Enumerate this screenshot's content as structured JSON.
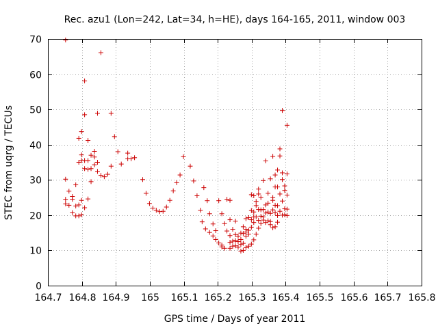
{
  "chart_data": {
    "type": "scatter",
    "title": "Rec. azu1 (Lon=242, Lat=34, h=HE), days 164-165, 2011, window 003",
    "xlabel": "GPS time / Days of year 2011",
    "ylabel": "STEC from uqrg / TECUs",
    "xlim": [
      164.7,
      165.8
    ],
    "ylim": [
      0,
      70
    ],
    "xticks": [
      "164.7",
      "164.8",
      "164.9",
      "165",
      "165.1",
      "165.2",
      "165.3",
      "165.4",
      "165.5",
      "165.6",
      "165.7",
      "165.8"
    ],
    "yticks": [
      "0",
      "10",
      "20",
      "30",
      "40",
      "50",
      "60",
      "70"
    ],
    "grid": true,
    "marker": "+",
    "color": "#cc0000",
    "series": [
      {
        "points": [
          [
            164.752,
            69.7
          ],
          [
            164.752,
            30.2
          ],
          [
            164.752,
            24.5
          ],
          [
            164.752,
            23.2
          ],
          [
            164.762,
            26.8
          ],
          [
            164.762,
            22.8
          ],
          [
            164.772,
            25.3
          ],
          [
            164.772,
            24.5
          ],
          [
            164.772,
            20.7
          ],
          [
            164.782,
            28.6
          ],
          [
            164.782,
            22.6
          ],
          [
            164.782,
            19.8
          ],
          [
            164.791,
            41.8
          ],
          [
            164.791,
            35.0
          ],
          [
            164.791,
            22.9
          ],
          [
            164.791,
            19.8
          ],
          [
            164.799,
            43.7
          ],
          [
            164.799,
            37.1
          ],
          [
            164.799,
            35.5
          ],
          [
            164.799,
            24.2
          ],
          [
            164.799,
            20.1
          ],
          [
            164.808,
            58.1
          ],
          [
            164.808,
            48.5
          ],
          [
            164.808,
            35.5
          ],
          [
            164.808,
            33.2
          ],
          [
            164.808,
            22.1
          ],
          [
            164.818,
            41.2
          ],
          [
            164.818,
            35.5
          ],
          [
            164.818,
            33.0
          ],
          [
            164.818,
            24.6
          ],
          [
            164.827,
            37.0
          ],
          [
            164.827,
            33.2
          ],
          [
            164.827,
            29.5
          ],
          [
            164.837,
            38.1
          ],
          [
            164.837,
            36.5
          ],
          [
            164.837,
            34.3
          ],
          [
            164.846,
            48.9
          ],
          [
            164.846,
            35.0
          ],
          [
            164.846,
            32.4
          ],
          [
            164.856,
            66.1
          ],
          [
            164.856,
            31.3
          ],
          [
            164.866,
            30.9
          ],
          [
            164.876,
            31.6
          ],
          [
            164.886,
            48.9
          ],
          [
            164.886,
            33.9
          ],
          [
            164.896,
            42.3
          ],
          [
            164.906,
            38.0
          ],
          [
            164.916,
            34.5
          ],
          [
            164.935,
            37.6
          ],
          [
            164.935,
            36.0
          ],
          [
            164.945,
            36.0
          ],
          [
            164.955,
            36.3
          ],
          [
            164.979,
            30.1
          ],
          [
            164.989,
            26.2
          ],
          [
            164.999,
            23.3
          ],
          [
            165.009,
            22.0
          ],
          [
            165.019,
            21.4
          ],
          [
            165.029,
            21.0
          ],
          [
            165.039,
            21.1
          ],
          [
            165.049,
            22.3
          ],
          [
            165.059,
            24.2
          ],
          [
            165.069,
            26.9
          ],
          [
            165.079,
            29.2
          ],
          [
            165.089,
            31.4
          ],
          [
            165.099,
            36.6
          ],
          [
            165.119,
            33.9
          ],
          [
            165.129,
            29.7
          ],
          [
            165.139,
            25.5
          ],
          [
            165.149,
            21.4
          ],
          [
            165.154,
            18.1
          ],
          [
            165.159,
            27.8
          ],
          [
            165.164,
            16.1
          ],
          [
            165.169,
            24.1
          ],
          [
            165.176,
            20.4
          ],
          [
            165.176,
            15.1
          ],
          [
            165.186,
            17.5
          ],
          [
            165.186,
            14.1
          ],
          [
            165.194,
            15.6
          ],
          [
            165.194,
            13.1
          ],
          [
            165.203,
            24.1
          ],
          [
            165.203,
            12.1
          ],
          [
            165.212,
            20.4
          ],
          [
            165.212,
            11.5
          ],
          [
            165.212,
            11.0
          ],
          [
            165.22,
            17.6
          ],
          [
            165.22,
            10.6
          ],
          [
            165.227,
            24.5
          ],
          [
            165.227,
            15.5
          ],
          [
            165.236,
            24.2
          ],
          [
            165.236,
            18.7
          ],
          [
            165.236,
            14.2
          ],
          [
            165.236,
            12.3
          ],
          [
            165.236,
            10.6
          ],
          [
            165.244,
            16.0
          ],
          [
            165.244,
            12.6
          ],
          [
            165.244,
            11.2
          ],
          [
            165.252,
            18.3
          ],
          [
            165.252,
            14.5
          ],
          [
            165.252,
            12.8
          ],
          [
            165.252,
            11.3
          ],
          [
            165.26,
            14.0
          ],
          [
            165.26,
            12.5
          ],
          [
            165.26,
            10.9
          ],
          [
            165.268,
            14.9
          ],
          [
            165.268,
            13.1
          ],
          [
            165.268,
            11.7
          ],
          [
            165.268,
            9.8
          ],
          [
            165.275,
            16.7
          ],
          [
            165.275,
            14.8
          ],
          [
            165.275,
            12.0
          ],
          [
            165.275,
            10.0
          ],
          [
            165.283,
            19.0
          ],
          [
            165.283,
            16.0
          ],
          [
            165.283,
            15.2
          ],
          [
            165.283,
            14.0
          ],
          [
            165.283,
            10.8
          ],
          [
            165.291,
            19.3
          ],
          [
            165.291,
            15.7
          ],
          [
            165.291,
            14.6
          ],
          [
            165.291,
            11.2
          ],
          [
            165.299,
            25.8
          ],
          [
            165.299,
            21.3
          ],
          [
            165.299,
            18.7
          ],
          [
            165.299,
            16.6
          ],
          [
            165.299,
            11.8
          ],
          [
            165.306,
            25.5
          ],
          [
            165.306,
            20.9
          ],
          [
            165.306,
            19.5
          ],
          [
            165.306,
            17.9
          ],
          [
            165.306,
            13.0
          ],
          [
            165.313,
            23.9
          ],
          [
            165.313,
            22.7
          ],
          [
            165.313,
            19.5
          ],
          [
            165.313,
            14.6
          ],
          [
            165.32,
            27.4
          ],
          [
            165.32,
            26.0
          ],
          [
            165.32,
            21.6
          ],
          [
            165.32,
            18.5
          ],
          [
            165.32,
            16.3
          ],
          [
            165.327,
            25.0
          ],
          [
            165.327,
            21.5
          ],
          [
            165.327,
            19.7
          ],
          [
            165.327,
            17.6
          ],
          [
            165.334,
            29.8
          ],
          [
            165.334,
            21.6
          ],
          [
            165.334,
            19.5
          ],
          [
            165.334,
            18.6
          ],
          [
            165.341,
            35.4
          ],
          [
            165.341,
            22.9
          ],
          [
            165.341,
            20.6
          ],
          [
            165.341,
            17.9
          ],
          [
            165.348,
            26.2
          ],
          [
            165.348,
            23.4
          ],
          [
            165.348,
            20.9
          ],
          [
            165.348,
            18.4
          ],
          [
            165.355,
            30.3
          ],
          [
            165.355,
            20.5
          ],
          [
            165.355,
            18.2
          ],
          [
            165.355,
            17.3
          ],
          [
            165.362,
            36.7
          ],
          [
            165.362,
            25.0
          ],
          [
            165.362,
            24.2
          ],
          [
            165.362,
            21.5
          ],
          [
            165.362,
            16.4
          ],
          [
            165.369,
            31.4
          ],
          [
            165.369,
            28.0
          ],
          [
            165.369,
            22.8
          ],
          [
            165.369,
            20.7
          ],
          [
            165.369,
            16.7
          ],
          [
            165.376,
            32.8
          ],
          [
            165.376,
            28.0
          ],
          [
            165.376,
            22.7
          ],
          [
            165.376,
            19.9
          ],
          [
            165.376,
            18.0
          ],
          [
            165.383,
            38.8
          ],
          [
            165.383,
            36.8
          ],
          [
            165.383,
            26.0
          ],
          [
            165.383,
            21.1
          ],
          [
            165.39,
            49.7
          ],
          [
            165.39,
            32.0
          ],
          [
            165.39,
            30.1
          ],
          [
            165.39,
            24.0
          ],
          [
            165.39,
            20.0
          ],
          [
            165.397,
            28.3
          ],
          [
            165.397,
            27.0
          ],
          [
            165.397,
            21.8
          ],
          [
            165.397,
            20.1
          ],
          [
            165.404,
            45.5
          ],
          [
            165.404,
            31.7
          ],
          [
            165.404,
            25.7
          ],
          [
            165.404,
            21.7
          ],
          [
            165.404,
            19.9
          ]
        ]
      }
    ]
  }
}
